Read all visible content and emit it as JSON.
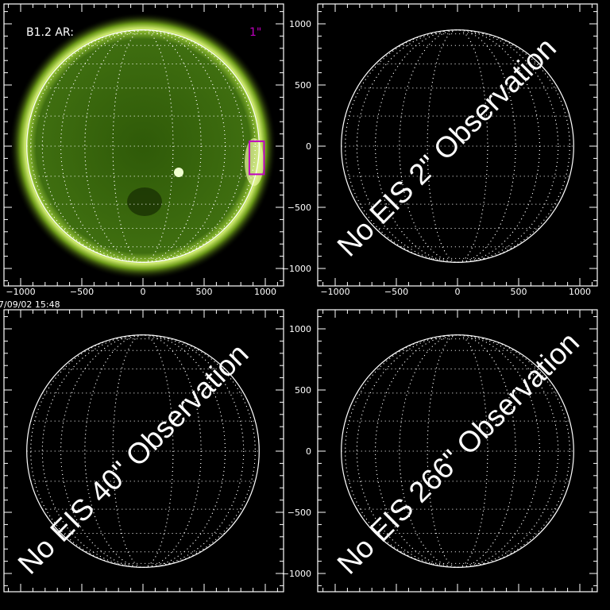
{
  "chart_data": [
    {
      "type": "image",
      "panel": "top-left",
      "label": "B1.2 AR:",
      "exposure_label": "1\"",
      "timestamp": "7/09/02 15:48",
      "colormap": "green",
      "roi_box": {
        "x_range": [
          870,
          990
        ],
        "y_range": [
          -230,
          40
        ],
        "color": "#c000c0"
      },
      "xlim": [
        -1150,
        1150
      ],
      "ylim": [
        -1150,
        1150
      ],
      "xticks": [
        -1000,
        -500,
        0,
        500,
        1000
      ],
      "yticks": [
        -1000,
        -500,
        0,
        500,
        1000
      ],
      "xtick_labels": [
        "−1000",
        "−500",
        "0",
        "500",
        "1000"
      ]
    },
    {
      "type": "image",
      "panel": "top-right",
      "message": "No EIS 2\" Observation",
      "xlim": [
        -1150,
        1150
      ],
      "ylim": [
        -1150,
        1150
      ],
      "xtick_labels": [
        "−1000",
        "−500",
        "0",
        "500",
        "1000"
      ],
      "ytick_labels": [
        "1000",
        "500",
        "0",
        "−500",
        "−1000"
      ]
    },
    {
      "type": "image",
      "panel": "bottom-left",
      "message": "No EIS 40\" Observation",
      "xlim": [
        -1150,
        1150
      ],
      "ylim": [
        -1150,
        1150
      ]
    },
    {
      "type": "image",
      "panel": "bottom-right",
      "message": "No EIS 266\" Observation",
      "xlim": [
        -1150,
        1150
      ],
      "ylim": [
        -1150,
        1150
      ],
      "ytick_labels": [
        "1000",
        "500",
        "0",
        "−500",
        "−1000"
      ]
    }
  ],
  "colors": {
    "axes": "#ffffff",
    "roi": "#c000c0",
    "sun": "#4a7a10",
    "limb": "#d8f070"
  }
}
